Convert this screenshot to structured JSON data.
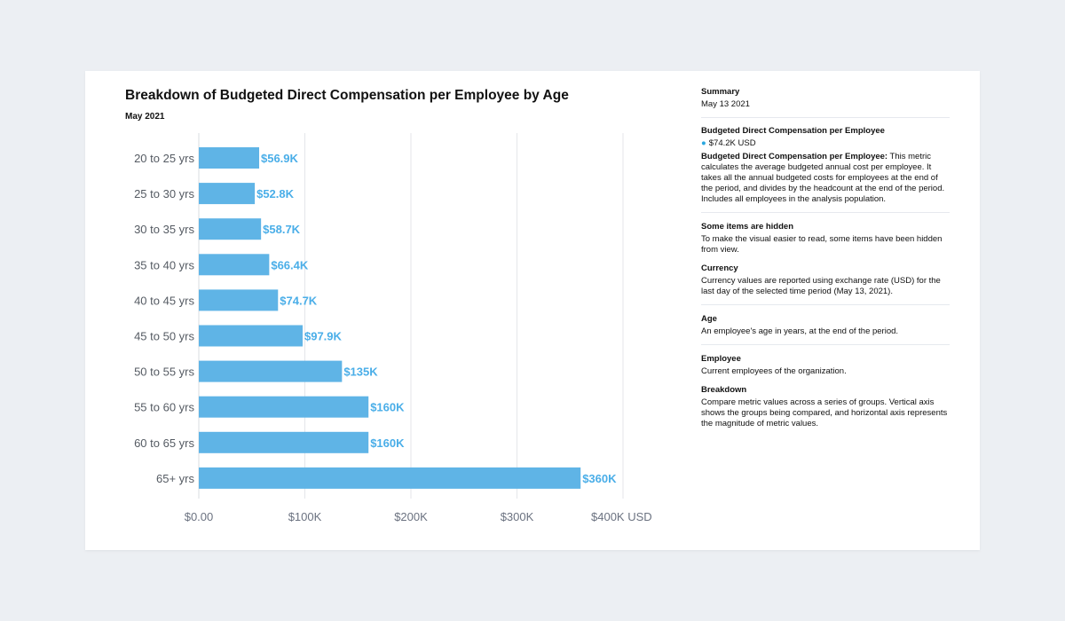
{
  "chart_data": {
    "type": "bar",
    "orientation": "horizontal",
    "title": "Breakdown of Budgeted Direct Compensation per Employee by Age",
    "subtitle": "May 2021",
    "categories": [
      "20 to 25 yrs",
      "25 to 30 yrs",
      "30 to 35 yrs",
      "35 to 40 yrs",
      "40 to 45 yrs",
      "45 to 50 yrs",
      "50 to 55 yrs",
      "55 to 60 yrs",
      "60 to 65 yrs",
      "65+ yrs"
    ],
    "values": [
      56900,
      52800,
      58700,
      66400,
      74700,
      97900,
      135000,
      160000,
      160000,
      360000
    ],
    "data_labels": [
      "$56.9K",
      "$52.8K",
      "$58.7K",
      "$66.4K",
      "$74.7K",
      "$97.9K",
      "$135K",
      "$160K",
      "$160K",
      "$360K"
    ],
    "xlim": [
      0,
      400000
    ],
    "xticks": [
      0,
      100000,
      200000,
      300000,
      400000
    ],
    "xtick_labels": [
      "$0.00",
      "$100K",
      "$200K",
      "$300K",
      "$400K USD"
    ],
    "grid": true,
    "bar_color": "#5fb4e6",
    "label_color": "#4aaee8"
  },
  "sidebar": {
    "summary_title": "Summary",
    "summary_date": "May 13 2021",
    "metric_title": "Budgeted Direct Compensation per Employee",
    "metric_value": "$74.2K USD",
    "metric_desc_bold": "Budgeted Direct Compensation per Employee:",
    "metric_desc": " This metric calculates the average budgeted annual cost per employee. It takes all the annual budgeted costs for employees at the end of the period, and divides by the headcount at the end of the period. Includes all employees in the analysis population.",
    "hidden_title": "Some items are hidden",
    "hidden_desc": "To make the visual easier to read, some items have been hidden from view.",
    "currency_title": "Currency",
    "currency_desc": "Currency values are reported using exchange rate (USD) for the last day of the selected time period (May 13, 2021).",
    "age_title": "Age",
    "age_desc": "An employee's age in years, at the end of the period.",
    "employee_title": "Employee",
    "employee_desc": "Current employees of the organization.",
    "breakdown_title": "Breakdown",
    "breakdown_desc": "Compare metric values across a series of groups. Vertical axis shows the groups being compared, and horizontal axis represents the magnitude of metric values."
  }
}
